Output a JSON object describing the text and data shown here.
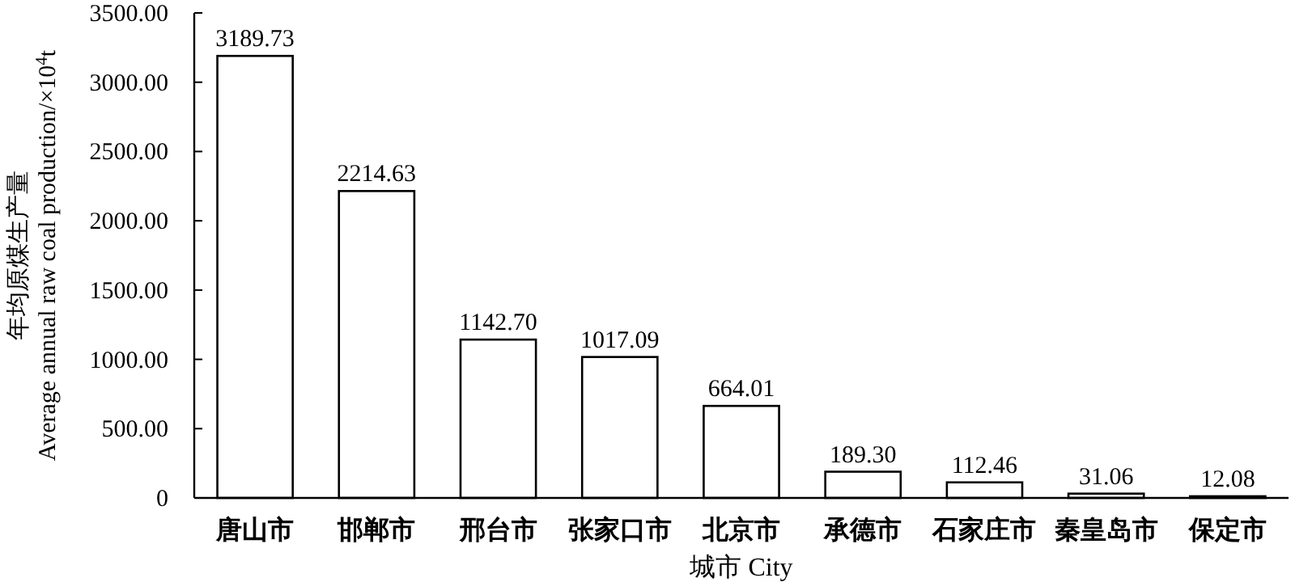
{
  "chart_data": {
    "type": "bar",
    "xlabel": "城市 City",
    "ylabel": "年均原煤生产量\nAverage annual raw coal production/×10$^{4}$t",
    "categories": [
      "唐山市",
      "邯郸市",
      "邢台市",
      "张家口市",
      "北京市",
      "承德市",
      "石家庄市",
      "秦皇岛市",
      "保定市"
    ],
    "values": [
      3189.73,
      2214.63,
      1142.7,
      1017.09,
      664.01,
      189.3,
      112.46,
      31.06,
      12.08
    ],
    "value_labels": [
      "3189.73",
      "2214.63",
      "1142.70",
      "1017.09",
      "664.01",
      "189.30",
      "112.46",
      "31.06",
      "12.08"
    ],
    "color": "#ffffff",
    "ylim": [
      0,
      3500
    ],
    "yticks": [
      0,
      {
        "value": 500,
        "label": "500.00"
      },
      {
        "value": 1000,
        "label": "1000.00"
      },
      {
        "value": 1500,
        "label": "1500.00"
      },
      {
        "value": 2000,
        "label": "2000.00"
      },
      {
        "value": 2500,
        "label": "2500.00"
      },
      {
        "value": 3000,
        "label": "3000.00"
      },
      {
        "value": 3500,
        "label": "3500.00"
      }
    ],
    "grid": false
  }
}
